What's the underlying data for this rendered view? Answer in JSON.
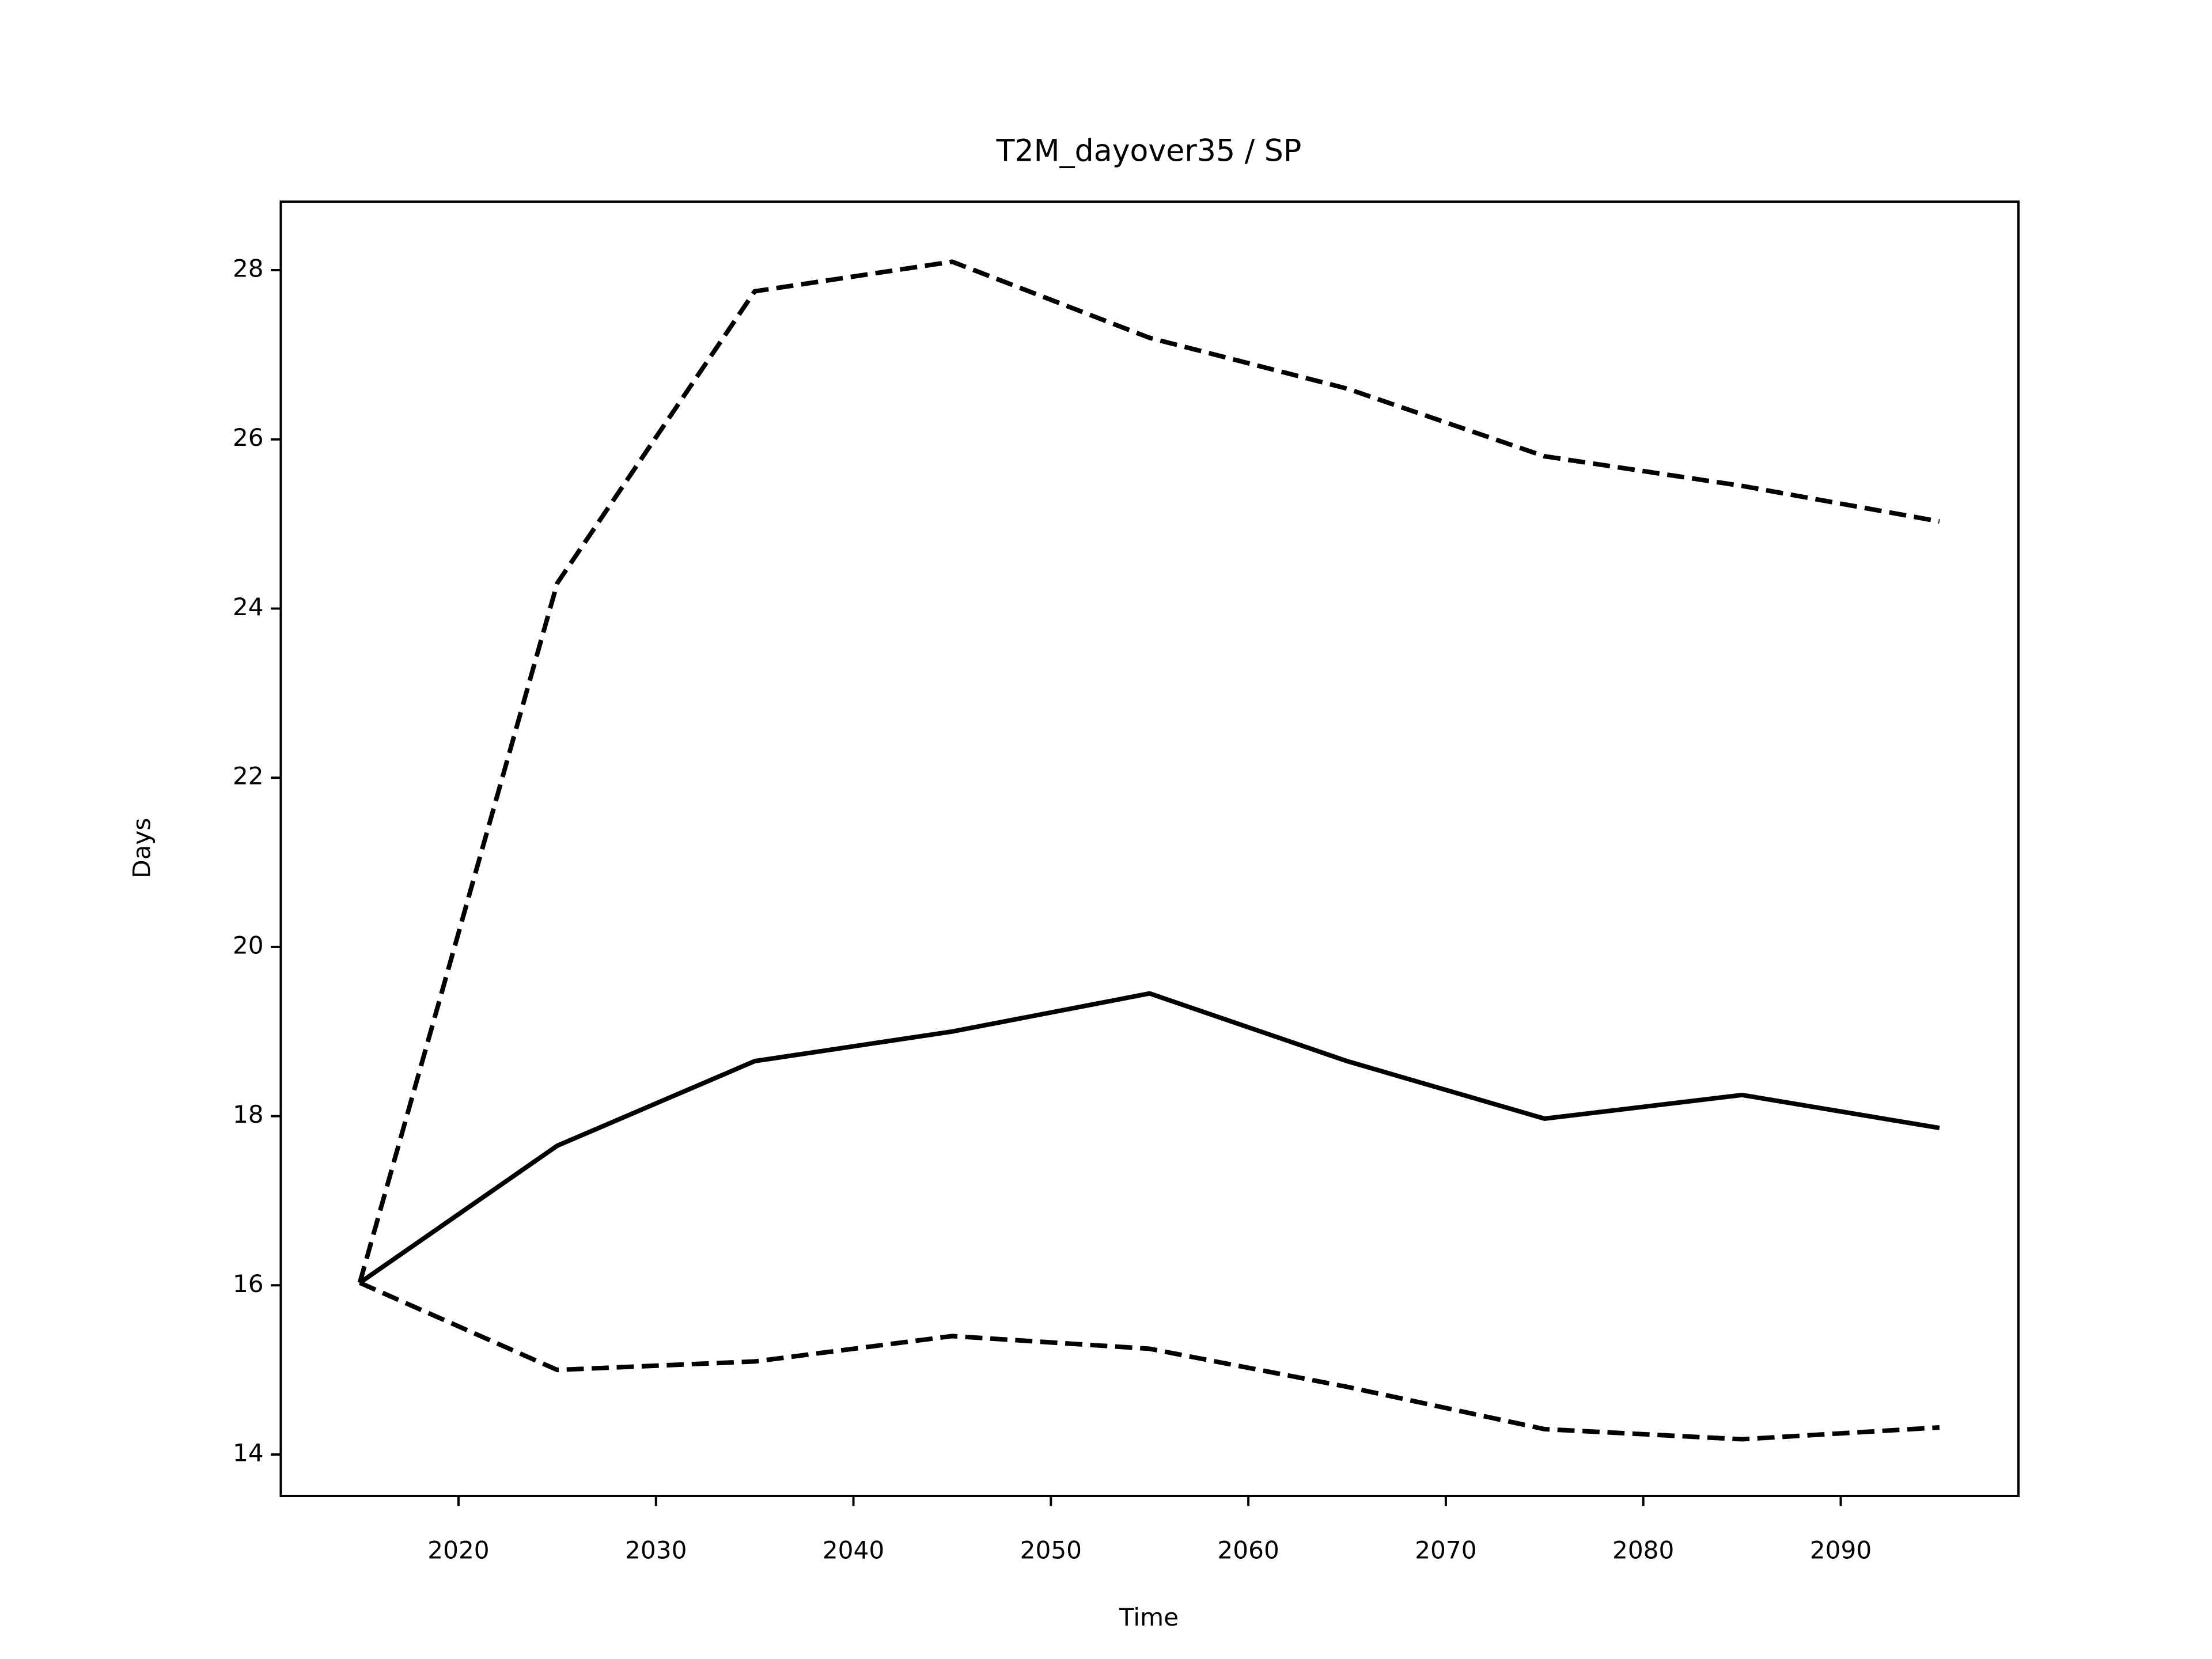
{
  "chart_data": {
    "type": "line",
    "title": "T2M_dayover35 / SP",
    "x_label": "Time",
    "y_label": "Days",
    "x": [
      2015,
      2025,
      2035,
      2045,
      2055,
      2065,
      2075,
      2085,
      2095
    ],
    "series": [
      {
        "color": "#000000",
        "style": "solid",
        "values": [
          16.03,
          17.65,
          18.65,
          19.0,
          19.45,
          18.65,
          17.97,
          18.25,
          17.86
        ]
      },
      {
        "color": "#000000",
        "style": "dashed",
        "values": [
          16.03,
          24.3,
          27.75,
          28.1,
          27.2,
          26.6,
          25.8,
          25.45,
          25.03
        ]
      },
      {
        "color": "#000000",
        "style": "dashed",
        "values": [
          16.03,
          15.0,
          15.1,
          15.4,
          15.25,
          14.8,
          14.3,
          14.18,
          14.32
        ]
      }
    ],
    "xlim": [
      2011,
      2099
    ],
    "ylim": [
      13.51,
      28.81
    ],
    "xticks": [
      2020,
      2030,
      2040,
      2050,
      2060,
      2070,
      2080,
      2090
    ],
    "yticks": [
      14,
      16,
      18,
      20,
      22,
      24,
      26,
      28
    ],
    "grid": false
  }
}
